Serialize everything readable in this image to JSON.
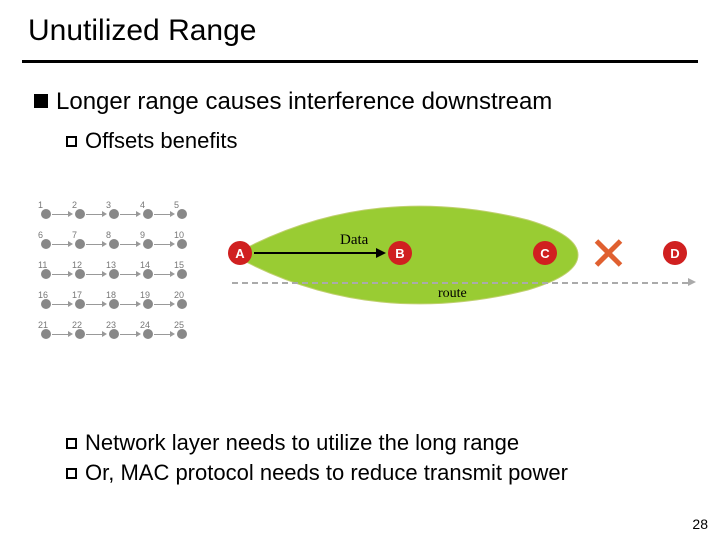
{
  "slide": {
    "title": "Unutilized Range",
    "page": "28"
  },
  "bullets": {
    "b1": "Longer range causes interference downstream",
    "b2": "Offsets benefits",
    "b3": "Network layer needs to utilize the long range",
    "b4": "Or, MAC protocol needs to reduce transmit power"
  },
  "diagram": {
    "data_label": "Data",
    "route_label": "route",
    "nodes": {
      "A": {
        "label": "A",
        "color": "#d02020"
      },
      "B": {
        "label": "B",
        "color": "#d02020"
      },
      "C": {
        "label": "C",
        "color": "#d02020"
      },
      "D": {
        "label": "D",
        "color": "#d02020"
      }
    },
    "ellipse_color": "#99cc33",
    "cross_color": "#e06030",
    "grid_labels": [
      "1",
      "2",
      "3",
      "4",
      "5",
      "6",
      "7",
      "8",
      "9",
      "10",
      "11",
      "12",
      "13",
      "14",
      "15",
      "16",
      "17",
      "18",
      "19",
      "20",
      "21",
      "22",
      "23",
      "24",
      "25"
    ]
  }
}
